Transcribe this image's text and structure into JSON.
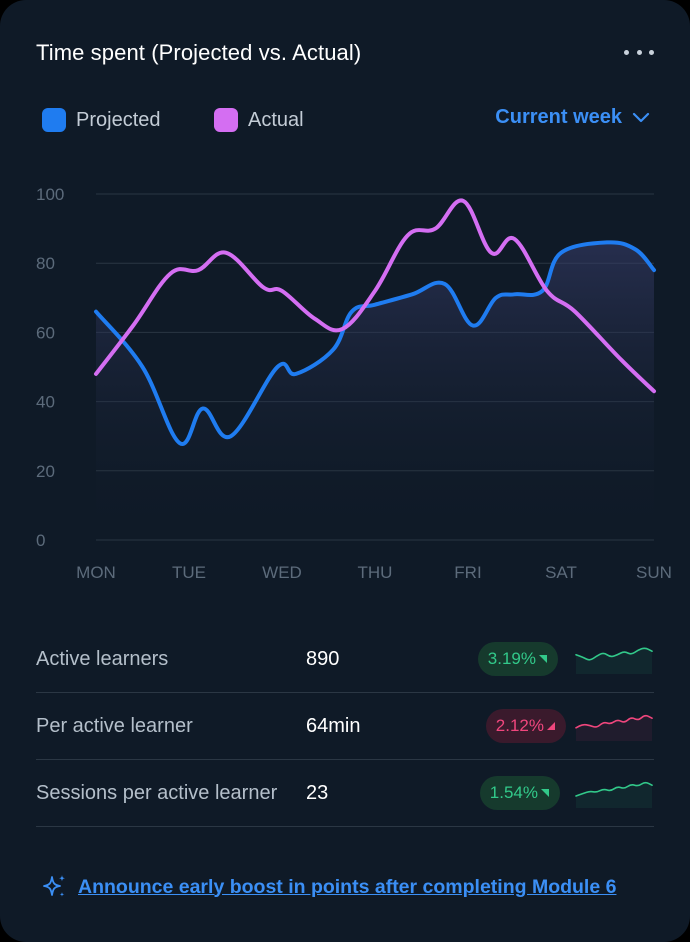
{
  "header": {
    "title": "Time spent (Projected vs. Actual)",
    "more_icon": "more-horizontal-icon"
  },
  "legend": {
    "projected_label": "Projected",
    "actual_label": "Actual",
    "projected_color": "#1f7cf0",
    "actual_color": "#d46ef2"
  },
  "period_select": {
    "value": "Current week",
    "icon": "chevron-down-icon"
  },
  "chart_data": {
    "type": "line",
    "title": "",
    "xlabel": "",
    "ylabel": "",
    "ylim": [
      0,
      100
    ],
    "yticks": [
      "100",
      "80",
      "60",
      "40",
      "20",
      "0"
    ],
    "categories": [
      "MON",
      "TUE",
      "WED",
      "THU",
      "FRI",
      "SAT",
      "SUN"
    ],
    "grid": true,
    "series": [
      {
        "name": "Projected",
        "color": "#1f7cf0",
        "area": true,
        "x": [
          0,
          0.5,
          0.9,
          1.15,
          1.45,
          1.95,
          2.15,
          2.55,
          2.75,
          3.0,
          3.4,
          3.75,
          4.05,
          4.3,
          4.5,
          4.8,
          5.0,
          5.5,
          5.8,
          6.0
        ],
        "values": [
          66,
          50,
          28,
          38,
          30,
          50,
          48,
          55,
          66,
          68,
          71,
          74,
          62,
          70,
          71,
          72,
          83,
          86,
          84,
          78
        ]
      },
      {
        "name": "Actual",
        "color": "#d46ef2",
        "area": false,
        "x": [
          0,
          0.4,
          0.8,
          1.1,
          1.4,
          1.8,
          2.0,
          2.35,
          2.65,
          3.0,
          3.35,
          3.65,
          3.95,
          4.25,
          4.5,
          4.85,
          5.15,
          5.65,
          6.0
        ],
        "values": [
          48,
          62,
          77,
          78,
          83,
          73,
          72,
          64,
          61,
          72,
          88,
          90,
          98,
          83,
          87,
          72,
          66,
          52,
          43
        ]
      }
    ]
  },
  "stats": [
    {
      "label": "Active learners",
      "value": "890",
      "change": "3.19%",
      "direction": "up",
      "color": "#32c98a",
      "spark": [
        0.45,
        0.55,
        0.7,
        0.5,
        0.35,
        0.55,
        0.45,
        0.3,
        0.45,
        0.25,
        0.15,
        0.3
      ]
    },
    {
      "label": "Per active learner",
      "value": "64min",
      "change": "2.12%",
      "direction": "down",
      "color": "#f0467d",
      "spark": [
        0.7,
        0.55,
        0.6,
        0.7,
        0.45,
        0.55,
        0.35,
        0.5,
        0.25,
        0.4,
        0.15,
        0.3
      ]
    },
    {
      "label": "Sessions per active learner",
      "value": "23",
      "change": "1.54%",
      "direction": "up",
      "color": "#32c98a",
      "spark": [
        0.75,
        0.65,
        0.55,
        0.6,
        0.45,
        0.55,
        0.35,
        0.45,
        0.25,
        0.35,
        0.15,
        0.3
      ]
    }
  ],
  "cta": {
    "icon": "sparkle-icon",
    "text": "Announce early boost in points after completing Module 6"
  }
}
